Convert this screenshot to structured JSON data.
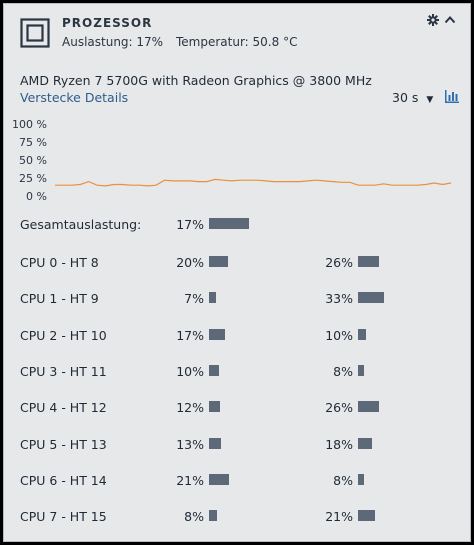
{
  "header": {
    "title": "PROZESSOR",
    "load": "Auslastung: 17%",
    "temperature": "Temperatur: 50.8 °C"
  },
  "details": {
    "model": "AMD Ryzen 7 5700G with Radeon Graphics @ 3800 MHz",
    "hide_link": "Verstecke Details",
    "interval": "30 s"
  },
  "chart_data": {
    "type": "line",
    "y_ticks": [
      "100 %",
      "75 %",
      "50 %",
      "25 %",
      "0 %"
    ],
    "ylim": [
      0,
      100
    ],
    "series": [
      {
        "color": "#e8913a",
        "values": [
          15,
          15,
          15,
          16,
          20,
          15,
          14,
          16,
          16,
          15,
          15,
          14,
          15,
          22,
          21,
          21,
          21,
          20,
          20,
          23,
          22,
          21,
          22,
          22,
          22,
          21,
          20,
          20,
          20,
          20,
          21,
          22,
          21,
          20,
          19,
          19,
          15,
          15,
          15,
          17,
          15,
          15,
          15,
          15,
          16,
          18,
          16,
          18
        ]
      }
    ]
  },
  "overall": {
    "label": "Gesamtauslastung:",
    "value": 17,
    "text": "17%"
  },
  "cores": [
    {
      "label": "CPU 0 - HT 8",
      "a": 20,
      "a_text": "20%",
      "b": 26,
      "b_text": "26%"
    },
    {
      "label": "CPU 1 - HT 9",
      "a": 7,
      "a_text": "7%",
      "b": 33,
      "b_text": "33%"
    },
    {
      "label": "CPU 2 - HT 10",
      "a": 17,
      "a_text": "17%",
      "b": 10,
      "b_text": "10%"
    },
    {
      "label": "CPU 3 - HT 11",
      "a": 10,
      "a_text": "10%",
      "b": 8,
      "b_text": "8%"
    },
    {
      "label": "CPU 4 - HT 12",
      "a": 12,
      "a_text": "12%",
      "b": 26,
      "b_text": "26%"
    },
    {
      "label": "CPU 5 - HT 13",
      "a": 13,
      "a_text": "13%",
      "b": 18,
      "b_text": "18%"
    },
    {
      "label": "CPU 6 - HT 14",
      "a": 21,
      "a_text": "21%",
      "b": 8,
      "b_text": "8%"
    },
    {
      "label": "CPU 7 - HT 15",
      "a": 8,
      "a_text": "8%",
      "b": 21,
      "b_text": "21%"
    }
  ],
  "colors": {
    "accent_link": "#2f5c8a",
    "bar": "#5d6878",
    "line": "#e8913a",
    "background": "#e7e8ea"
  },
  "icons": {
    "chip": "cpu-chip-icon",
    "settings": "gear-icon",
    "collapse": "chevron-up-icon",
    "dropdown": "caret-down-icon",
    "chart": "bar-chart-icon"
  }
}
